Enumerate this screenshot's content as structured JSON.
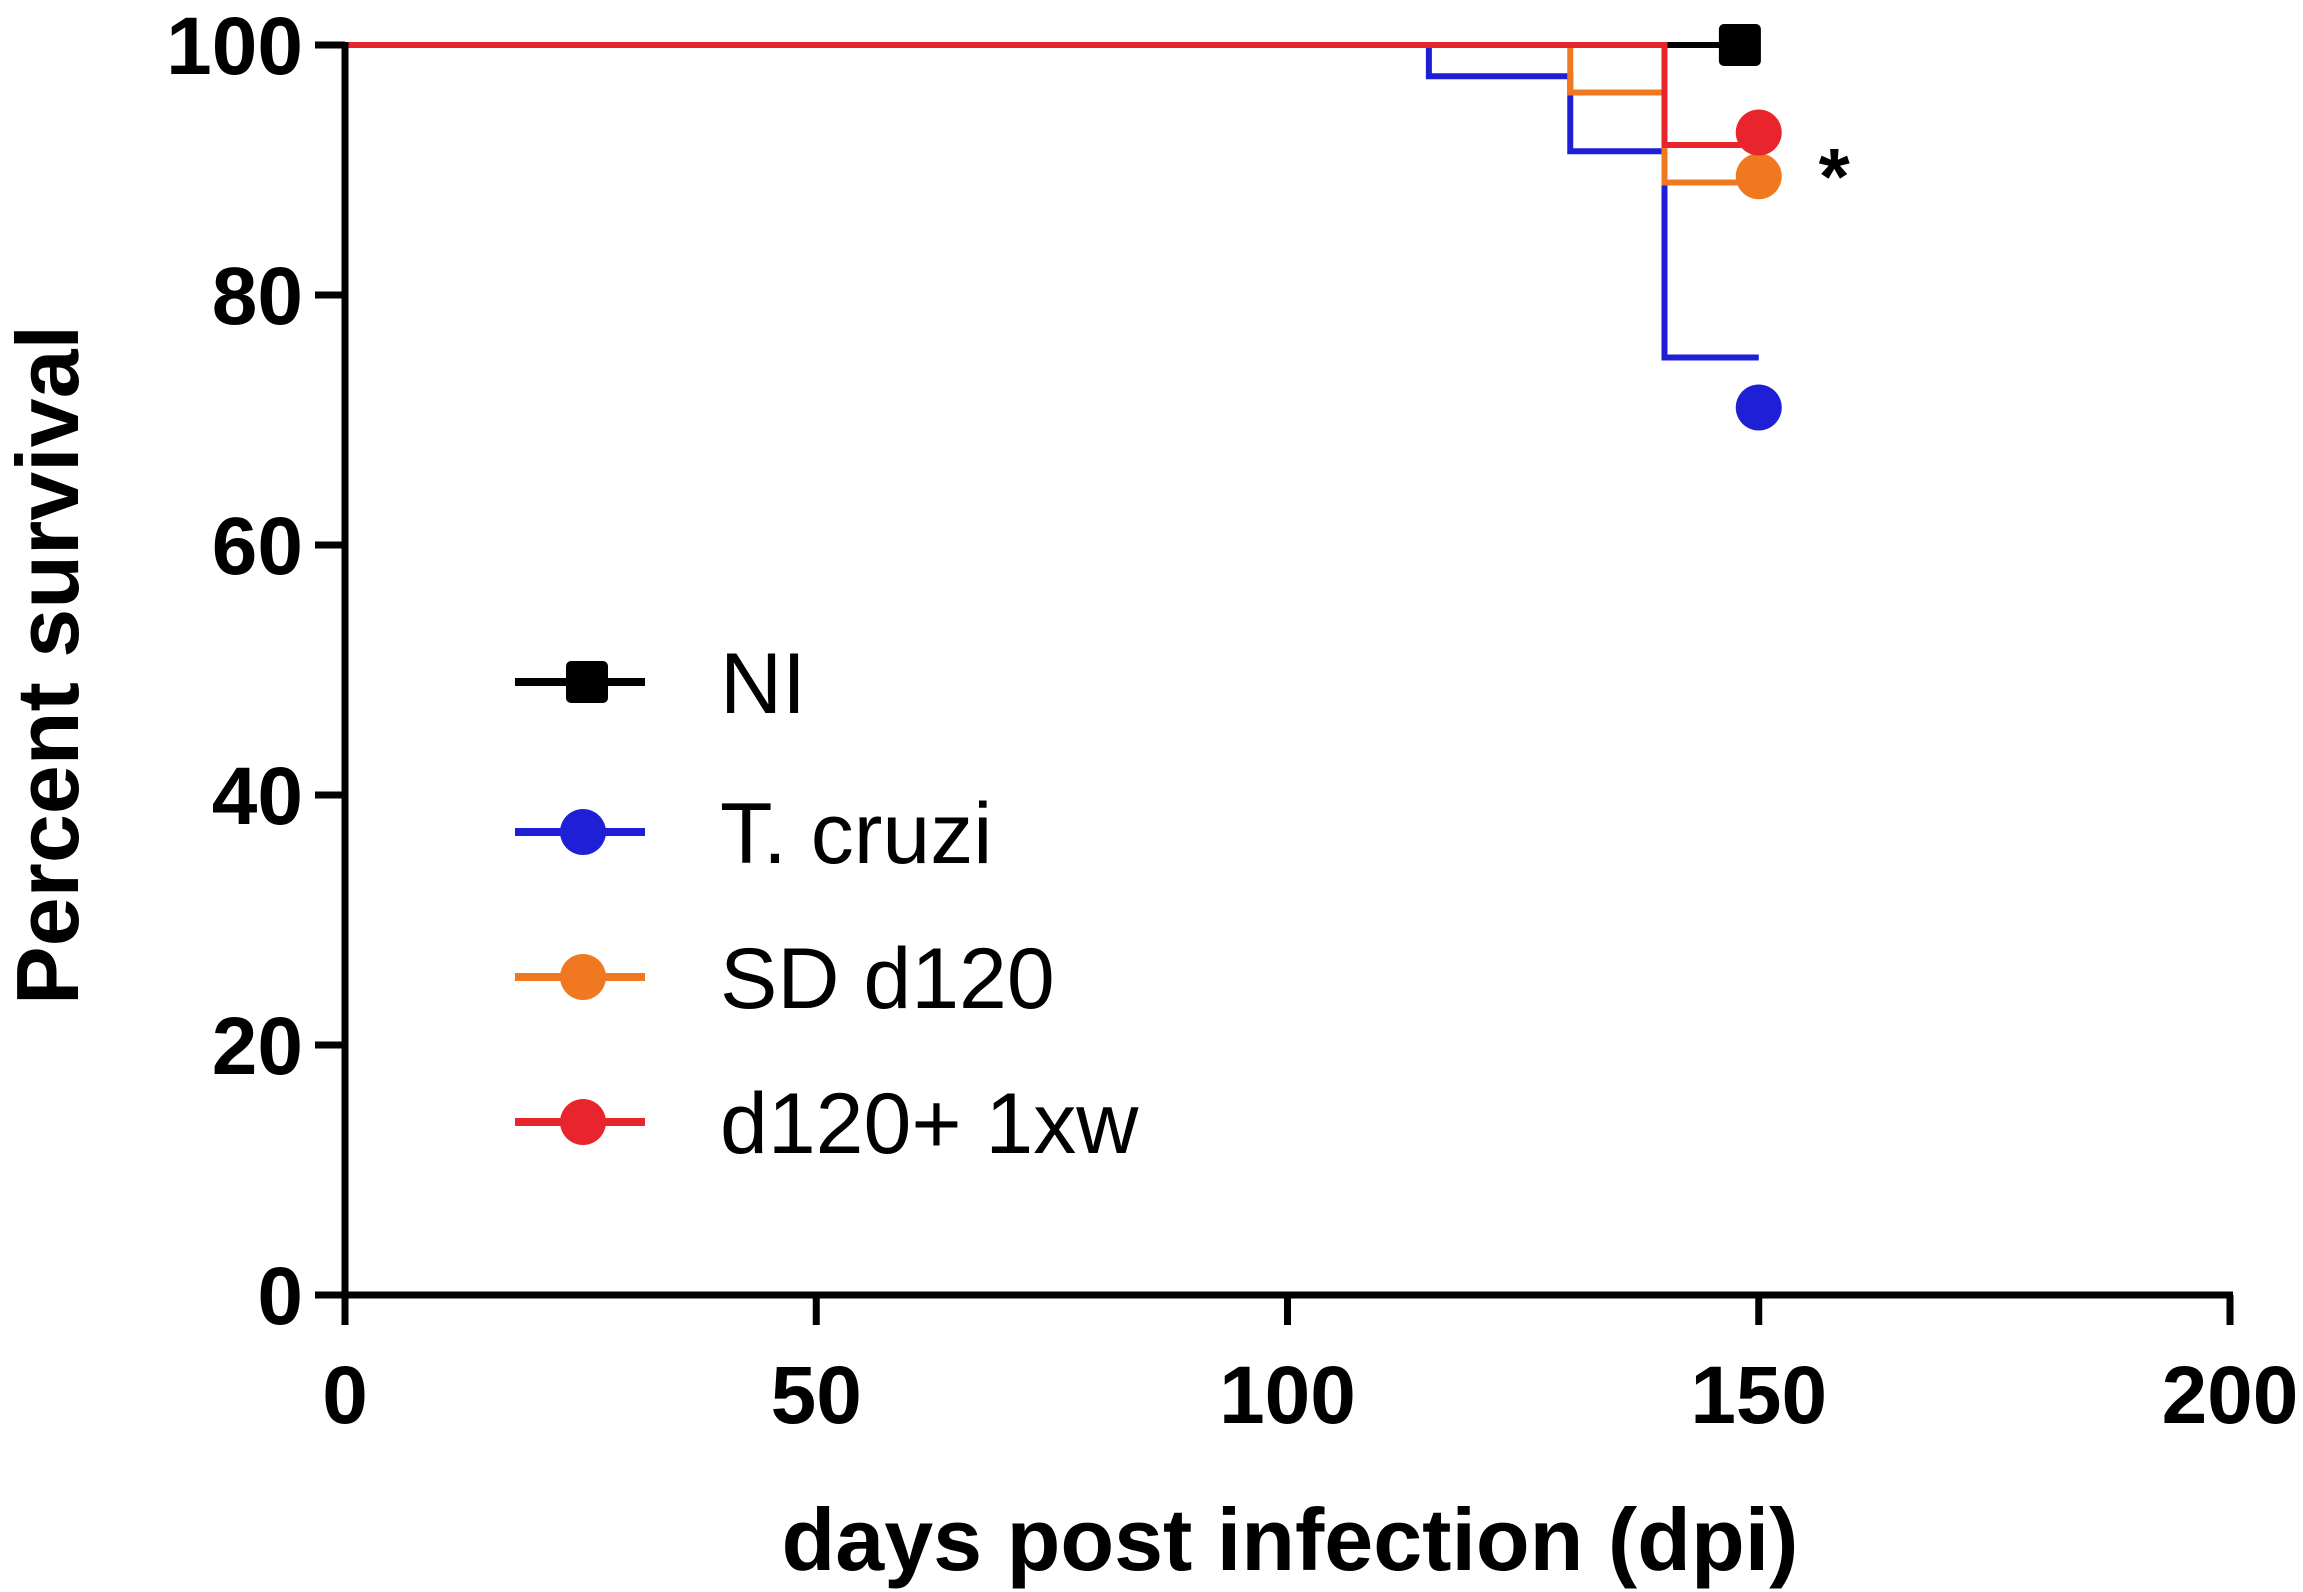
{
  "chart_data": {
    "type": "line",
    "subtype": "kaplan-meier step",
    "title": "",
    "xlabel": "days post infection (dpi)",
    "ylabel": "Percent survival",
    "xlim": [
      0,
      200
    ],
    "ylim": [
      0,
      100
    ],
    "xticks": [
      0,
      50,
      100,
      150,
      200
    ],
    "yticks": [
      0,
      20,
      40,
      60,
      80,
      100
    ],
    "grid": false,
    "legend_position": "center-left",
    "annotations": [
      {
        "text": "*",
        "x": 158,
        "y": 90.5
      }
    ],
    "series": [
      {
        "name": "NI",
        "color": "#000000",
        "marker": "square",
        "steps": [
          [
            0,
            100
          ],
          [
            148,
            100
          ]
        ],
        "end": [
          148,
          100
        ]
      },
      {
        "name": "T. cruzi",
        "color": "#1f1fd6",
        "marker": "circle",
        "steps": [
          [
            0,
            100
          ],
          [
            115,
            97.5
          ],
          [
            130,
            91.5
          ],
          [
            140,
            75
          ],
          [
            150,
            75
          ]
        ],
        "end": [
          150,
          71
        ]
      },
      {
        "name": "SD d120",
        "color": "#f07820",
        "marker": "circle",
        "steps": [
          [
            0,
            100
          ],
          [
            130,
            96.2
          ],
          [
            140,
            89
          ],
          [
            150,
            89
          ]
        ],
        "end": [
          150,
          89.5
        ]
      },
      {
        "name": "d120+ 1xw",
        "color": "#e8242c",
        "marker": "circle",
        "steps": [
          [
            0,
            100
          ],
          [
            140,
            92
          ],
          [
            150,
            92
          ]
        ],
        "end": [
          150,
          93
        ]
      }
    ]
  }
}
